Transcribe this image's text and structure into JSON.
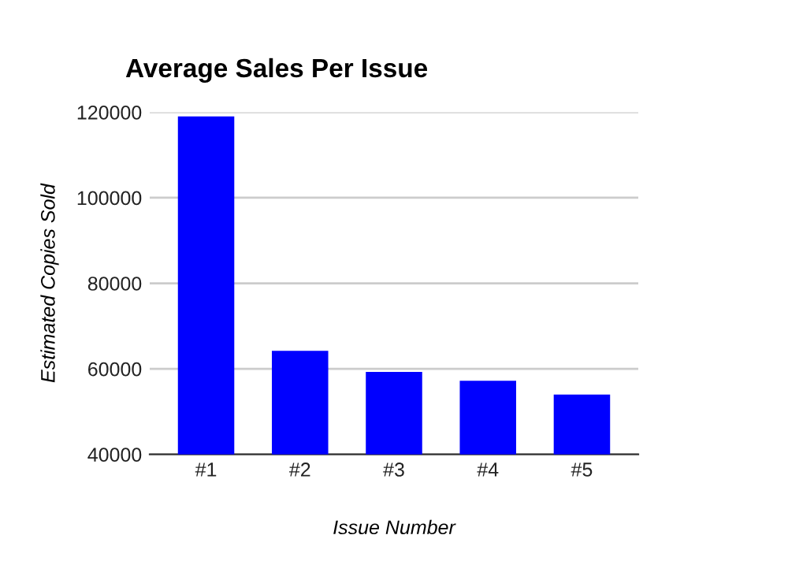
{
  "chart_data": {
    "type": "bar",
    "title": "Average Sales Per Issue",
    "xlabel": "Issue Number",
    "ylabel": "Estimated Copies Sold",
    "categories": [
      "#1",
      "#2",
      "#3",
      "#4",
      "#5"
    ],
    "values": [
      119000,
      64200,
      59300,
      57200,
      54000
    ],
    "color": "#0000ff",
    "ylim": [
      40000,
      120000
    ],
    "yticks": [
      40000,
      60000,
      80000,
      100000,
      120000
    ],
    "grid": "y",
    "legend": false
  }
}
